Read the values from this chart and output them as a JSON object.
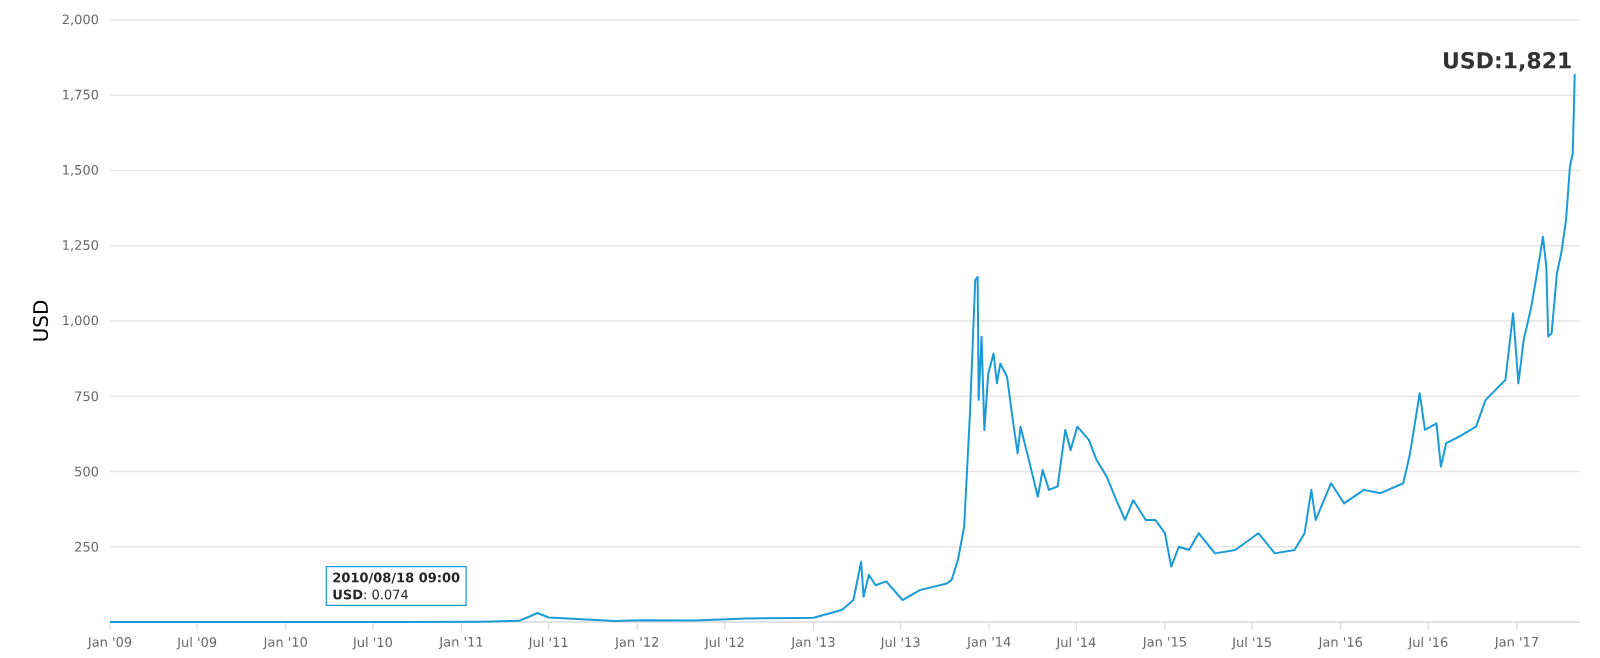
{
  "chart_data": {
    "type": "line",
    "ylabel": "USD",
    "x": [
      "2009-01-01",
      "2009-06-01",
      "2010-01-01",
      "2010-07-01",
      "2010-08-18",
      "2011-02-10",
      "2011-05-01",
      "2011-06-08",
      "2011-07-01",
      "2011-11-15",
      "2012-01-10",
      "2012-05-01",
      "2012-08-15",
      "2012-12-01",
      "2013-01-01",
      "2013-03-01",
      "2013-03-25",
      "2013-04-10",
      "2013-04-15",
      "2013-04-26",
      "2013-05-10",
      "2013-06-01",
      "2013-07-05",
      "2013-08-10",
      "2013-10-05",
      "2013-10-15",
      "2013-10-28",
      "2013-11-10",
      "2013-11-22",
      "2013-12-03",
      "2013-12-08",
      "2013-12-10",
      "2013-12-16",
      "2013-12-22",
      "2013-12-30",
      "2014-01-10",
      "2014-01-17",
      "2014-01-24",
      "2014-02-07",
      "2014-02-18",
      "2014-03-01",
      "2014-03-07",
      "2014-03-21",
      "2014-04-12",
      "2014-04-22",
      "2014-05-05",
      "2014-05-23",
      "2014-06-08",
      "2014-06-19",
      "2014-07-03",
      "2014-07-27",
      "2014-08-12",
      "2014-09-02",
      "2014-09-22",
      "2014-10-10",
      "2014-10-27",
      "2014-11-22",
      "2014-12-12",
      "2015-01-01",
      "2015-01-14",
      "2015-01-30",
      "2015-02-20",
      "2015-03-12",
      "2015-04-15",
      "2015-05-27",
      "2015-07-14",
      "2015-08-17",
      "2015-09-27",
      "2015-10-18",
      "2015-11-01",
      "2015-11-10",
      "2015-12-12",
      "2016-01-08",
      "2016-02-18",
      "2016-03-24",
      "2016-05-10",
      "2016-05-24",
      "2016-06-13",
      "2016-06-24",
      "2016-07-18",
      "2016-07-27",
      "2016-08-07",
      "2016-09-03",
      "2016-10-08",
      "2016-10-28",
      "2016-12-08",
      "2016-12-24",
      "2017-01-04",
      "2017-01-15",
      "2017-01-31",
      "2017-02-14",
      "2017-02-24",
      "2017-03-03",
      "2017-03-07",
      "2017-03-14",
      "2017-03-25",
      "2017-04-03",
      "2017-04-13",
      "2017-04-21",
      "2017-04-27",
      "2017-05-01"
    ],
    "series": [
      {
        "color": "#1a9bd7",
        "values": [
          0,
          0,
          0,
          0,
          0.074,
          1,
          4,
          30,
          15,
          3,
          6,
          5,
          12,
          13,
          14,
          40,
          73,
          200,
          84,
          157,
          122,
          135,
          73,
          106,
          128,
          140,
          206,
          317,
          693,
          1136,
          1147,
          738,
          948,
          638,
          826,
          892,
          793,
          859,
          815,
          682,
          560,
          649,
          560,
          416,
          505,
          439,
          450,
          638,
          571,
          649,
          605,
          538,
          483,
          405,
          339,
          405,
          339,
          339,
          295,
          184,
          250,
          239,
          295,
          228,
          239,
          295,
          228,
          239,
          295,
          439,
          339,
          461,
          394,
          439,
          428,
          461,
          560,
          760,
          638,
          660,
          516,
          594,
          616,
          649,
          738,
          804,
          1026,
          793,
          937,
          1048,
          1181,
          1280,
          1181,
          948,
          959,
          1158,
          1225,
          1336,
          1513,
          1557,
          1821
        ]
      }
    ],
    "xlim": [
      "2009-01-01",
      "2017-05-12"
    ],
    "xticks": [
      {
        "value": "2009-01",
        "label": "Jan '09"
      },
      {
        "value": "2009-07",
        "label": "Jul '09"
      },
      {
        "value": "2010-01",
        "label": "Jan '10"
      },
      {
        "value": "2010-07",
        "label": "Jul '10"
      },
      {
        "value": "2011-01",
        "label": "Jan '11"
      },
      {
        "value": "2011-07",
        "label": "Jul '11"
      },
      {
        "value": "2012-01",
        "label": "Jan '12"
      },
      {
        "value": "2012-07",
        "label": "Jul '12"
      },
      {
        "value": "2013-01",
        "label": "Jan '13"
      },
      {
        "value": "2013-07",
        "label": "Jul '13"
      },
      {
        "value": "2014-01",
        "label": "Jan '14"
      },
      {
        "value": "2014-07",
        "label": "Jul '14"
      },
      {
        "value": "2015-01",
        "label": "Jan '15"
      },
      {
        "value": "2015-07",
        "label": "Jul '15"
      },
      {
        "value": "2016-01",
        "label": "Jan '16"
      },
      {
        "value": "2016-07",
        "label": "Jul '16"
      },
      {
        "value": "2017-01",
        "label": "Jan '17"
      }
    ],
    "ylim": [
      0,
      2000
    ],
    "yticks": [
      {
        "value": 250,
        "label": "250"
      },
      {
        "value": 500,
        "label": "500"
      },
      {
        "value": 750,
        "label": "750"
      },
      {
        "value": 1000,
        "label": "1,000"
      },
      {
        "value": 1250,
        "label": "1,250"
      },
      {
        "value": 1500,
        "label": "1,500"
      },
      {
        "value": 1750,
        "label": "1,750"
      },
      {
        "value": 2000,
        "label": "2,000"
      }
    ],
    "grid": "y",
    "annotations": [
      {
        "text": "2010/08/18 09:00",
        "x": "2010-08-18T09:00",
        "y": 0.074
      },
      {
        "text": "**USD**: 0.074",
        "x": "2010-08-18T09:00",
        "y": 0.074
      },
      {
        "text": "USD:1,821",
        "x": "2017-05-01",
        "y": 1821
      }
    ]
  }
}
